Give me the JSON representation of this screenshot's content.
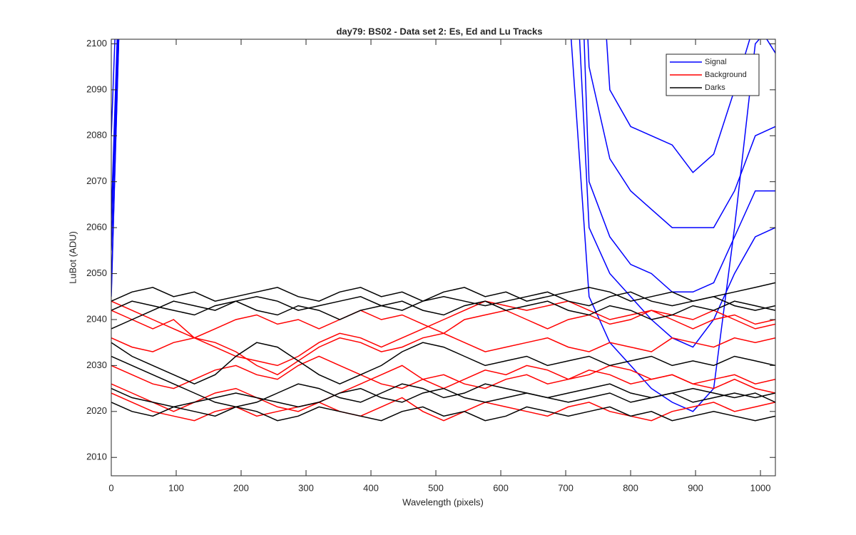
{
  "chart_data": {
    "type": "line",
    "title": "day79: BS02 - Data set 2: Es, Ed and Lu Tracks",
    "xlabel": "Wavelength (pixels)",
    "ylabel": "LuBot (ADU)",
    "xlim": [
      0,
      1023
    ],
    "ylim": [
      2006,
      2101
    ],
    "xticks": [
      0,
      100,
      200,
      300,
      400,
      500,
      600,
      700,
      800,
      900,
      1000
    ],
    "yticks": [
      2010,
      2020,
      2030,
      2040,
      2050,
      2060,
      2070,
      2080,
      2090,
      2100
    ],
    "legend": "northeast",
    "x": [
      0,
      32,
      64,
      96,
      128,
      160,
      192,
      224,
      256,
      288,
      320,
      352,
      384,
      416,
      448,
      480,
      512,
      544,
      576,
      608,
      640,
      672,
      704,
      736,
      768,
      800,
      832,
      864,
      896,
      928,
      960,
      992,
      1023
    ],
    "series": [
      {
        "name": "Signal",
        "color": "#0000ff",
        "values": [
          [
            2080,
            2200,
            2200,
            2200,
            2200,
            2200,
            2200,
            2200,
            2200,
            2200,
            2200,
            2200,
            2200,
            2200,
            2200,
            2200,
            2200,
            2200,
            2200,
            2200,
            2200,
            2200,
            2200,
            2160,
            2090,
            2082,
            2080,
            2078,
            2072,
            2076,
            2090,
            2105,
            2098
          ],
          [
            2062,
            2200,
            2200,
            2200,
            2200,
            2200,
            2200,
            2200,
            2200,
            2200,
            2200,
            2200,
            2200,
            2200,
            2200,
            2200,
            2200,
            2200,
            2200,
            2200,
            2200,
            2200,
            2200,
            2095,
            2075,
            2068,
            2064,
            2060,
            2060,
            2060,
            2068,
            2080,
            2082
          ],
          [
            2055,
            2200,
            2200,
            2200,
            2200,
            2200,
            2200,
            2200,
            2200,
            2200,
            2200,
            2200,
            2200,
            2200,
            2200,
            2200,
            2200,
            2200,
            2200,
            2200,
            2200,
            2200,
            2200,
            2070,
            2058,
            2052,
            2050,
            2046,
            2046,
            2048,
            2058,
            2068,
            2068
          ],
          [
            2045,
            2200,
            2200,
            2200,
            2200,
            2200,
            2200,
            2200,
            2200,
            2200,
            2200,
            2200,
            2200,
            2200,
            2200,
            2200,
            2200,
            2200,
            2200,
            2200,
            2200,
            2200,
            2150,
            2060,
            2050,
            2045,
            2040,
            2036,
            2034,
            2040,
            2050,
            2058,
            2060
          ],
          [
            2046,
            2200,
            2200,
            2200,
            2200,
            2200,
            2200,
            2200,
            2200,
            2200,
            2200,
            2200,
            2200,
            2200,
            2200,
            2200,
            2200,
            2200,
            2200,
            2200,
            2200,
            2200,
            2110,
            2045,
            2035,
            2030,
            2025,
            2022,
            2020,
            2025,
            2060,
            2100,
            2105
          ]
        ]
      },
      {
        "name": "Background",
        "color": "#ff0000",
        "values": [
          [
            2042,
            2040,
            2038,
            2040,
            2036,
            2038,
            2040,
            2041,
            2039,
            2040,
            2038,
            2040,
            2042,
            2040,
            2041,
            2039,
            2037,
            2040,
            2041,
            2042,
            2040,
            2038,
            2040,
            2041,
            2039,
            2040,
            2042,
            2040,
            2038,
            2040,
            2041,
            2039,
            2040
          ],
          [
            2036,
            2034,
            2033,
            2035,
            2036,
            2035,
            2033,
            2030,
            2028,
            2031,
            2034,
            2036,
            2035,
            2033,
            2034,
            2036,
            2037,
            2035,
            2033,
            2034,
            2035,
            2036,
            2034,
            2033,
            2035,
            2034,
            2033,
            2036,
            2035,
            2034,
            2036,
            2035,
            2036
          ],
          [
            2030,
            2028,
            2026,
            2025,
            2027,
            2029,
            2030,
            2028,
            2027,
            2030,
            2032,
            2030,
            2028,
            2026,
            2025,
            2027,
            2028,
            2026,
            2025,
            2027,
            2028,
            2026,
            2027,
            2029,
            2028,
            2026,
            2027,
            2028,
            2026,
            2027,
            2028,
            2026,
            2027
          ],
          [
            2024,
            2022,
            2020,
            2019,
            2018,
            2020,
            2021,
            2019,
            2020,
            2021,
            2022,
            2020,
            2019,
            2021,
            2023,
            2020,
            2018,
            2020,
            2022,
            2021,
            2020,
            2019,
            2021,
            2022,
            2020,
            2019,
            2018,
            2020,
            2021,
            2022,
            2020,
            2021,
            2022
          ],
          [
            2026,
            2024,
            2022,
            2020,
            2022,
            2024,
            2025,
            2023,
            2021,
            2020,
            2022,
            2024,
            2026,
            2028,
            2030,
            2027,
            2025,
            2027,
            2029,
            2028,
            2030,
            2029,
            2027,
            2028,
            2030,
            2029,
            2027,
            2028,
            2026,
            2025,
            2027,
            2025,
            2024
          ],
          [
            2044,
            2042,
            2040,
            2038,
            2036,
            2034,
            2032,
            2031,
            2030,
            2032,
            2035,
            2037,
            2036,
            2034,
            2036,
            2038,
            2040,
            2042,
            2044,
            2043,
            2042,
            2043,
            2044,
            2042,
            2040,
            2041,
            2042,
            2041,
            2040,
            2042,
            2040,
            2038,
            2039
          ]
        ]
      },
      {
        "name": "Darks",
        "color": "#000000",
        "values": [
          [
            2044,
            2046,
            2047,
            2045,
            2046,
            2044,
            2045,
            2046,
            2047,
            2045,
            2044,
            2046,
            2047,
            2045,
            2046,
            2044,
            2046,
            2047,
            2045,
            2046,
            2044,
            2045,
            2046,
            2047,
            2046,
            2044,
            2045,
            2046,
            2044,
            2045,
            2046,
            2047,
            2048
          ],
          [
            2042,
            2044,
            2043,
            2042,
            2041,
            2043,
            2044,
            2042,
            2041,
            2043,
            2042,
            2040,
            2042,
            2043,
            2044,
            2042,
            2041,
            2043,
            2044,
            2042,
            2043,
            2044,
            2042,
            2041,
            2043,
            2042,
            2040,
            2041,
            2043,
            2042,
            2044,
            2043,
            2042
          ],
          [
            2035,
            2032,
            2030,
            2028,
            2026,
            2028,
            2032,
            2035,
            2034,
            2031,
            2028,
            2026,
            2028,
            2030,
            2033,
            2035,
            2034,
            2032,
            2030,
            2031,
            2032,
            2030,
            2031,
            2032,
            2030,
            2031,
            2032,
            2030,
            2031,
            2030,
            2032,
            2031,
            2030
          ],
          [
            2025,
            2023,
            2022,
            2021,
            2022,
            2023,
            2024,
            2023,
            2022,
            2021,
            2022,
            2024,
            2025,
            2023,
            2022,
            2024,
            2025,
            2023,
            2022,
            2023,
            2024,
            2023,
            2022,
            2023,
            2024,
            2022,
            2023,
            2024,
            2022,
            2023,
            2024,
            2023,
            2024
          ],
          [
            2022,
            2020,
            2019,
            2021,
            2020,
            2019,
            2021,
            2020,
            2018,
            2019,
            2021,
            2020,
            2019,
            2018,
            2020,
            2021,
            2019,
            2020,
            2018,
            2019,
            2021,
            2020,
            2019,
            2020,
            2021,
            2019,
            2020,
            2018,
            2019,
            2020,
            2019,
            2018,
            2019
          ],
          [
            2038,
            2040,
            2042,
            2044,
            2043,
            2042,
            2044,
            2045,
            2044,
            2042,
            2043,
            2044,
            2045,
            2043,
            2042,
            2044,
            2045,
            2044,
            2043,
            2044,
            2045,
            2046,
            2044,
            2043,
            2045,
            2046,
            2044,
            2043,
            2044,
            2045,
            2043,
            2042,
            2043
          ],
          [
            2032,
            2030,
            2028,
            2026,
            2024,
            2022,
            2021,
            2022,
            2024,
            2026,
            2025,
            2023,
            2022,
            2024,
            2026,
            2025,
            2023,
            2024,
            2026,
            2025,
            2024,
            2023,
            2024,
            2025,
            2026,
            2024,
            2023,
            2024,
            2025,
            2024,
            2023,
            2024,
            2022
          ]
        ]
      }
    ]
  }
}
